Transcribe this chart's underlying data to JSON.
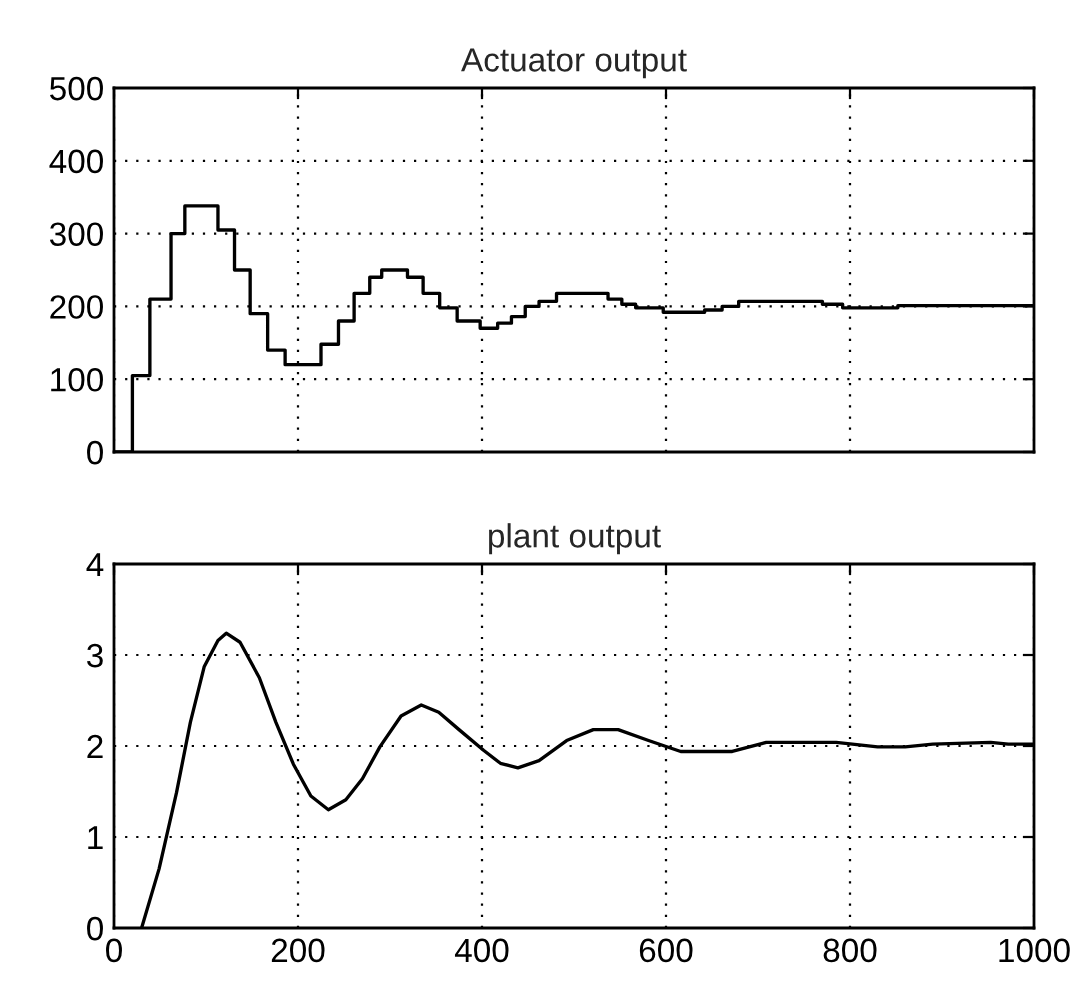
{
  "chart_data": [
    {
      "type": "step",
      "title": "Actuator output",
      "xlim": [
        0,
        1000
      ],
      "xticks": [
        0,
        200,
        400,
        600,
        800,
        1000
      ],
      "ylim": [
        0,
        500
      ],
      "yticks": [
        0,
        100,
        200,
        300,
        400,
        500
      ],
      "grid": true,
      "tick_labels": "y",
      "series": [
        {
          "color": "#000000",
          "x": [
            0,
            20,
            39,
            62,
            77,
            113,
            131,
            148,
            167,
            186,
            225,
            244,
            261,
            278,
            291,
            319,
            336,
            354,
            373,
            398,
            417,
            432,
            447,
            462,
            481,
            537,
            552,
            567,
            597,
            642,
            661,
            679,
            770,
            792,
            852,
            1000
          ],
          "values": [
            0,
            105,
            210,
            300,
            338,
            305,
            250,
            190,
            140,
            120,
            148,
            180,
            218,
            240,
            250,
            240,
            218,
            198,
            180,
            170,
            177,
            186,
            200,
            207,
            218,
            210,
            203,
            198,
            192,
            195,
            200,
            207,
            203,
            198,
            201,
            201
          ]
        }
      ]
    },
    {
      "type": "line",
      "title": "plant output",
      "xlim": [
        0,
        1000
      ],
      "xticks": [
        0,
        200,
        400,
        600,
        800,
        1000
      ],
      "ylim": [
        0,
        4
      ],
      "yticks": [
        0,
        1,
        2,
        3,
        4
      ],
      "grid": true,
      "series": [
        {
          "color": "#000000",
          "x": [
            30,
            49,
            68,
            83,
            98,
            113,
            122,
            137,
            158,
            176,
            195,
            214,
            233,
            252,
            270,
            289,
            312,
            334,
            353,
            375,
            402,
            420,
            439,
            462,
            492,
            521,
            548,
            581,
            616,
            672,
            709,
            785,
            830,
            860,
            890,
            953,
            972,
            1000
          ],
          "values": [
            0,
            0.65,
            1.49,
            2.26,
            2.87,
            3.16,
            3.24,
            3.14,
            2.75,
            2.26,
            1.8,
            1.45,
            1.3,
            1.41,
            1.64,
            1.99,
            2.33,
            2.45,
            2.37,
            2.18,
            1.95,
            1.81,
            1.76,
            1.84,
            2.06,
            2.18,
            2.18,
            2.06,
            1.94,
            1.94,
            2.04,
            2.04,
            1.99,
            1.99,
            2.02,
            2.04,
            2.02,
            2.02
          ]
        }
      ]
    }
  ]
}
